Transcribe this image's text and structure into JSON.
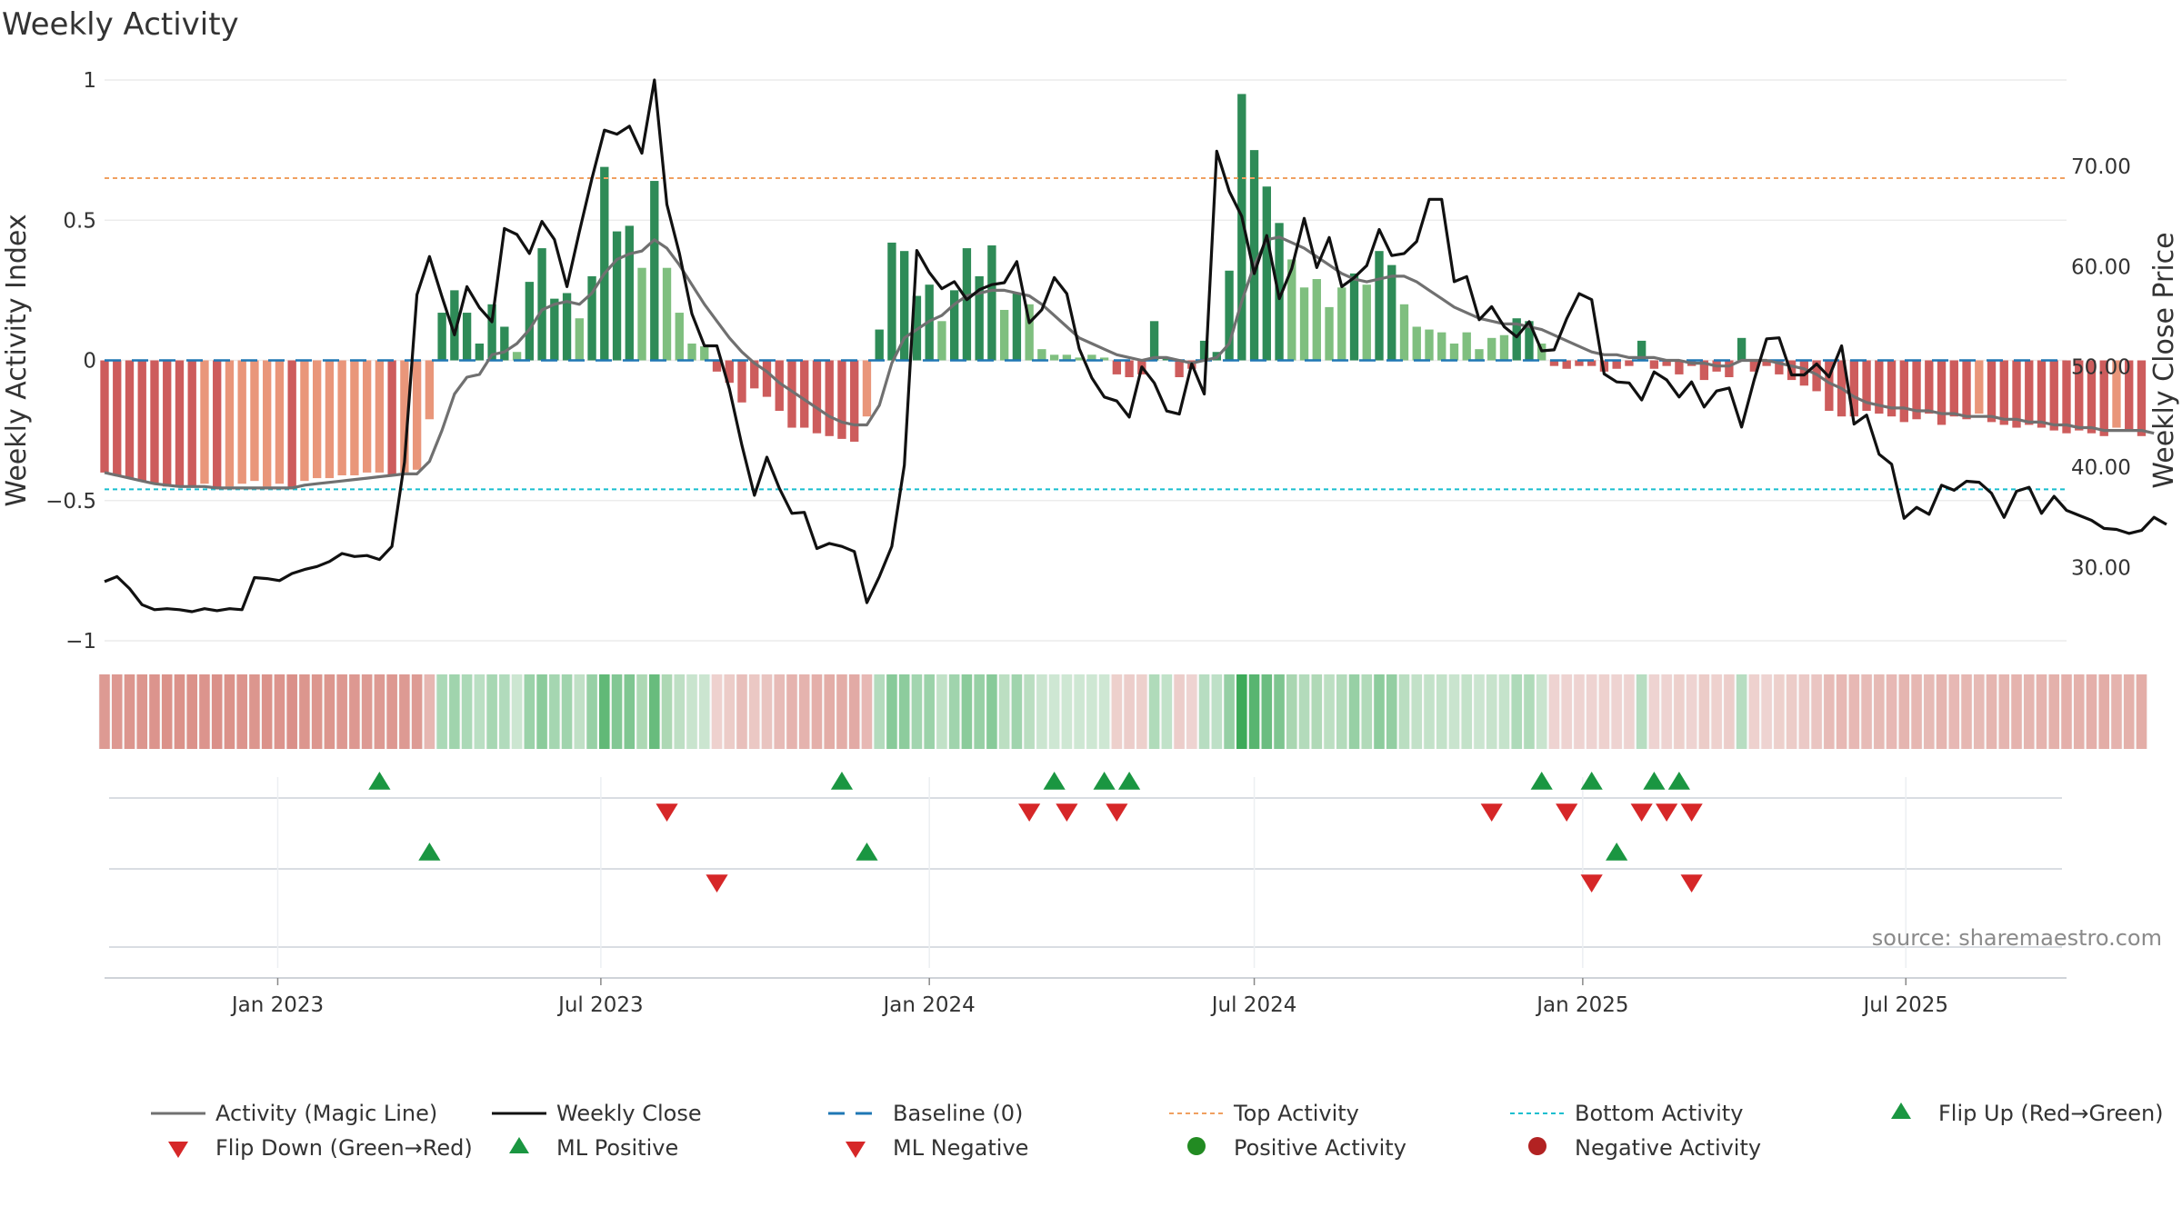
{
  "chart_data": {
    "type": "bar",
    "title": "Weekly Activity",
    "ylabel": "Weekly Activity Index",
    "y2label": "Weekly Close Price",
    "ylim": [
      -1,
      1
    ],
    "y2lim": [
      22.7,
      78.6
    ],
    "xlim": [
      "2022-09-26",
      "2025-09-29"
    ],
    "yticks": [
      {
        "v": 1,
        "label": "1"
      },
      {
        "v": 0.5,
        "label": "0.5"
      },
      {
        "v": 0,
        "label": "0"
      },
      {
        "v": -0.5,
        "label": "−0.5"
      },
      {
        "v": -1,
        "label": "−1"
      }
    ],
    "y2ticks": [
      {
        "v": 70,
        "label": "70.00"
      },
      {
        "v": 60,
        "label": "60.00"
      },
      {
        "v": 50,
        "label": "50.00"
      },
      {
        "v": 40,
        "label": "40.00"
      },
      {
        "v": 30,
        "label": "30.00"
      }
    ],
    "xticks": [
      {
        "date": "2023-01-01",
        "label": "Jan 2023"
      },
      {
        "date": "2023-07-01",
        "label": "Jul 2023"
      },
      {
        "date": "2024-01-01",
        "label": "Jan 2024"
      },
      {
        "date": "2024-07-01",
        "label": "Jul 2024"
      },
      {
        "date": "2025-01-01",
        "label": "Jan 2025"
      },
      {
        "date": "2025-07-01",
        "label": "Jul 2025"
      }
    ],
    "start_date": "2022-09-26",
    "top_activity": 0.65,
    "bottom_activity": -0.46,
    "baseline": 0,
    "activity": [
      -0.4,
      -0.41,
      -0.42,
      -0.43,
      -0.44,
      -0.45,
      -0.45,
      -0.45,
      -0.44,
      -0.46,
      -0.45,
      -0.44,
      -0.43,
      -0.45,
      -0.44,
      -0.46,
      -0.43,
      -0.42,
      -0.42,
      -0.41,
      -0.41,
      -0.4,
      -0.4,
      -0.41,
      -0.4,
      -0.39,
      -0.21,
      0.17,
      0.25,
      0.17,
      0.06,
      0.2,
      0.12,
      0.03,
      0.28,
      0.4,
      0.22,
      0.24,
      0.15,
      0.3,
      0.69,
      0.46,
      0.48,
      0.33,
      0.64,
      0.33,
      0.17,
      0.06,
      0.05,
      -0.04,
      -0.08,
      -0.15,
      -0.1,
      -0.13,
      -0.18,
      -0.24,
      -0.24,
      -0.26,
      -0.27,
      -0.28,
      -0.29,
      -0.2,
      0.11,
      0.42,
      0.39,
      0.23,
      0.27,
      0.14,
      0.25,
      0.4,
      0.3,
      0.41,
      0.18,
      0.24,
      0.2,
      0.04,
      0.02,
      0.02,
      0.01,
      0.02,
      0.01,
      -0.05,
      -0.06,
      -0.05,
      0.14,
      0.01,
      -0.06,
      -0.03,
      0.07,
      0.03,
      0.32,
      0.95,
      0.75,
      0.62,
      0.49,
      0.36,
      0.26,
      0.29,
      0.19,
      0.26,
      0.31,
      0.27,
      0.39,
      0.34,
      0.2,
      0.12,
      0.11,
      0.1,
      0.06,
      0.1,
      0.04,
      0.08,
      0.09,
      0.15,
      0.14,
      0.06,
      -0.02,
      -0.03,
      -0.02,
      -0.02,
      -0.04,
      -0.03,
      -0.02,
      0.07,
      -0.03,
      -0.02,
      -0.05,
      -0.02,
      -0.07,
      -0.04,
      -0.06,
      0.08,
      -0.04,
      -0.02,
      -0.05,
      -0.07,
      -0.09,
      -0.11,
      -0.18,
      -0.2,
      -0.2,
      -0.18,
      -0.19,
      -0.2,
      -0.22,
      -0.21,
      -0.19,
      -0.23,
      -0.2,
      -0.21,
      -0.19,
      -0.22,
      -0.23,
      -0.24,
      -0.23,
      -0.24,
      -0.25,
      -0.26,
      -0.25,
      -0.26,
      -0.27,
      -0.24,
      -0.25,
      -0.27
    ],
    "magic_line": [
      -0.4,
      -0.41,
      -0.42,
      -0.43,
      -0.44,
      -0.445,
      -0.45,
      -0.45,
      -0.45,
      -0.455,
      -0.455,
      -0.455,
      -0.455,
      -0.455,
      -0.455,
      -0.455,
      -0.445,
      -0.44,
      -0.435,
      -0.43,
      -0.425,
      -0.42,
      -0.415,
      -0.41,
      -0.405,
      -0.405,
      -0.36,
      -0.25,
      -0.12,
      -0.06,
      -0.05,
      0.02,
      0.03,
      0.06,
      0.11,
      0.18,
      0.2,
      0.21,
      0.2,
      0.24,
      0.31,
      0.36,
      0.38,
      0.39,
      0.43,
      0.4,
      0.34,
      0.27,
      0.2,
      0.14,
      0.08,
      0.03,
      -0.01,
      -0.04,
      -0.08,
      -0.11,
      -0.14,
      -0.17,
      -0.2,
      -0.22,
      -0.23,
      -0.23,
      -0.16,
      -0.01,
      0.08,
      0.11,
      0.14,
      0.16,
      0.2,
      0.23,
      0.24,
      0.25,
      0.25,
      0.24,
      0.23,
      0.2,
      0.16,
      0.12,
      0.08,
      0.06,
      0.04,
      0.02,
      0.01,
      0.0,
      0.01,
      0.01,
      0.0,
      -0.01,
      0.0,
      0.01,
      0.06,
      0.21,
      0.34,
      0.43,
      0.44,
      0.42,
      0.4,
      0.37,
      0.34,
      0.31,
      0.29,
      0.28,
      0.29,
      0.3,
      0.3,
      0.28,
      0.25,
      0.22,
      0.19,
      0.17,
      0.15,
      0.14,
      0.13,
      0.13,
      0.12,
      0.11,
      0.09,
      0.07,
      0.05,
      0.03,
      0.02,
      0.02,
      0.01,
      0.01,
      0.01,
      0.0,
      0.0,
      -0.01,
      -0.01,
      -0.02,
      -0.02,
      0.0,
      0.0,
      0.0,
      -0.01,
      -0.02,
      -0.03,
      -0.05,
      -0.08,
      -0.1,
      -0.13,
      -0.15,
      -0.16,
      -0.17,
      -0.17,
      -0.18,
      -0.18,
      -0.19,
      -0.19,
      -0.2,
      -0.2,
      -0.2,
      -0.21,
      -0.21,
      -0.22,
      -0.22,
      -0.23,
      -0.23,
      -0.24,
      -0.24,
      -0.25,
      -0.25,
      -0.25,
      -0.25,
      -0.26
    ],
    "close": [
      28.6,
      29.1,
      27.9,
      26.3,
      25.8,
      25.9,
      25.8,
      25.6,
      25.9,
      25.7,
      25.9,
      25.8,
      29.0,
      28.9,
      28.7,
      29.4,
      29.8,
      30.1,
      30.6,
      31.4,
      31.1,
      31.2,
      30.8,
      32.1,
      40.5,
      57.2,
      61.0,
      57.0,
      53.2,
      58.0,
      55.9,
      54.5,
      63.8,
      63.2,
      61.3,
      64.5,
      62.7,
      58.0,
      63.5,
      68.8,
      73.6,
      73.2,
      74.0,
      71.3,
      78.6,
      66.2,
      61.3,
      55.3,
      52.1,
      52.1,
      47.8,
      42.2,
      37.2,
      41.0,
      37.9,
      35.4,
      35.5,
      31.9,
      32.4,
      32.1,
      31.6,
      26.5,
      29.1,
      32.1,
      40.2,
      61.6,
      59.4,
      57.8,
      58.5,
      56.7,
      57.7,
      58.2,
      58.4,
      60.5,
      54.4,
      55.7,
      58.9,
      57.3,
      51.8,
      48.9,
      47.0,
      46.6,
      45.0,
      50.0,
      48.4,
      45.6,
      45.3,
      50.3,
      47.3,
      71.5,
      67.5,
      65.0,
      59.3,
      63.1,
      56.8,
      59.8,
      64.8,
      59.9,
      62.9,
      58.0,
      58.9,
      60.1,
      63.7,
      61.1,
      61.3,
      62.5,
      66.7,
      66.7,
      58.5,
      59.0,
      54.7,
      56.0,
      54.0,
      53.0,
      54.5,
      51.6,
      51.7,
      54.8,
      57.3,
      56.7,
      49.3,
      48.5,
      48.4,
      46.7,
      49.5,
      48.7,
      47.0,
      48.5,
      46.0,
      47.6,
      47.9,
      44.0,
      48.7,
      52.8,
      52.9,
      49.2,
      49.2,
      50.3,
      49.0,
      52.1,
      44.3,
      45.2,
      41.3,
      40.3,
      34.9,
      36.0,
      35.3,
      38.2,
      37.7,
      38.6,
      38.5,
      37.4,
      35.0,
      37.6,
      38.0,
      35.4,
      37.1,
      35.7,
      35.2,
      34.7,
      33.9,
      33.8,
      33.4,
      33.7,
      35.0,
      34.3
    ],
    "markers": [
      {
        "row": 0,
        "kind": "up",
        "date": "2023-02-27"
      },
      {
        "row": 0,
        "kind": "up",
        "date": "2023-11-13"
      },
      {
        "row": 0,
        "kind": "up",
        "date": "2024-03-11"
      },
      {
        "row": 0,
        "kind": "up",
        "date": "2024-04-08"
      },
      {
        "row": 0,
        "kind": "up",
        "date": "2024-04-22"
      },
      {
        "row": 0,
        "kind": "up",
        "date": "2024-12-09"
      },
      {
        "row": 0,
        "kind": "up",
        "date": "2025-01-06"
      },
      {
        "row": 0,
        "kind": "up",
        "date": "2025-02-10"
      },
      {
        "row": 0,
        "kind": "up",
        "date": "2025-02-24"
      },
      {
        "row": 0,
        "kind": "down",
        "date": "2023-08-07"
      },
      {
        "row": 0,
        "kind": "down",
        "date": "2024-02-26"
      },
      {
        "row": 0,
        "kind": "down",
        "date": "2024-03-18"
      },
      {
        "row": 0,
        "kind": "down",
        "date": "2024-04-15"
      },
      {
        "row": 0,
        "kind": "down",
        "date": "2024-11-11"
      },
      {
        "row": 0,
        "kind": "down",
        "date": "2024-12-23"
      },
      {
        "row": 0,
        "kind": "down",
        "date": "2025-02-03"
      },
      {
        "row": 0,
        "kind": "down",
        "date": "2025-02-17"
      },
      {
        "row": 0,
        "kind": "down",
        "date": "2025-03-03"
      },
      {
        "row": 1,
        "kind": "up",
        "date": "2023-03-27"
      },
      {
        "row": 1,
        "kind": "up",
        "date": "2023-11-27"
      },
      {
        "row": 1,
        "kind": "up",
        "date": "2025-01-20"
      },
      {
        "row": 1,
        "kind": "down",
        "date": "2023-09-04"
      },
      {
        "row": 1,
        "kind": "down",
        "date": "2025-01-06"
      },
      {
        "row": 1,
        "kind": "down",
        "date": "2025-03-03"
      }
    ],
    "legend": [
      {
        "symbol": "line-gray",
        "label": "Activity (Magic Line)"
      },
      {
        "symbol": "line-black",
        "label": "Weekly Close"
      },
      {
        "symbol": "dash-blue",
        "label": "Baseline (0)"
      },
      {
        "symbol": "dot-orange",
        "label": "Top Activity"
      },
      {
        "symbol": "dot-cyan",
        "label": "Bottom Activity"
      },
      {
        "symbol": "tri-up",
        "label": "Flip Up (Red→Green)"
      },
      {
        "symbol": "tri-down",
        "label": "Flip Down (Green→Red)"
      },
      {
        "symbol": "tri-up",
        "label": "ML Positive"
      },
      {
        "symbol": "tri-down",
        "label": "ML Negative"
      },
      {
        "symbol": "circle-green",
        "label": "Positive Activity"
      },
      {
        "symbol": "circle-red",
        "label": "Negative Activity"
      }
    ],
    "source": "source: sharemaestro.com"
  },
  "colors": {
    "green_dark": "#2e8b57",
    "green_light": "#7fbf7f",
    "red_dark": "#cd5c5c",
    "salmon": "#e9967a",
    "magic_line": "#707070",
    "close_line": "#111111",
    "baseline": "#1f77b4",
    "top": "#f0a060",
    "bottom": "#17becf",
    "marker_up": "#1a9641",
    "marker_down": "#d62728",
    "dot_green": "#228b22",
    "dot_red": "#b22222"
  }
}
